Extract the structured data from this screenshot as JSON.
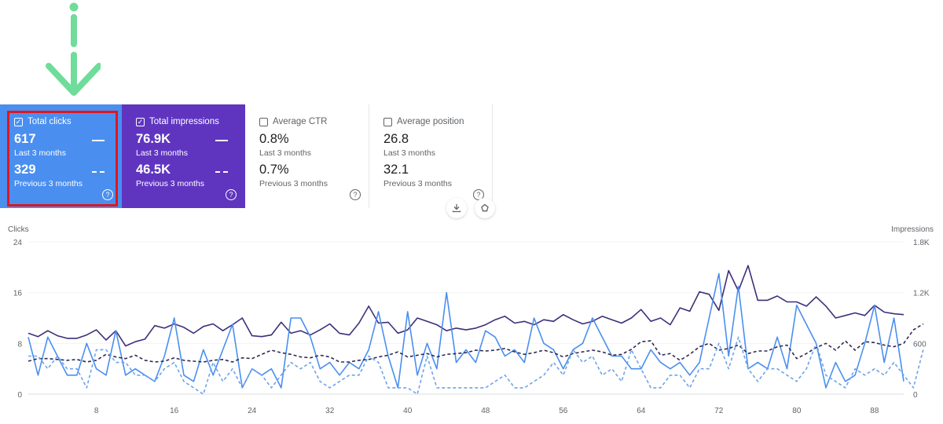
{
  "metrics": {
    "clicks": {
      "label": "Total clicks",
      "current": "617",
      "current_period": "Last 3 months",
      "previous": "329",
      "previous_period": "Previous 3 months",
      "checked": true,
      "color": "#4a8ff0"
    },
    "impressions": {
      "label": "Total impressions",
      "current": "76.9K",
      "current_period": "Last 3 months",
      "previous": "46.5K",
      "previous_period": "Previous 3 months",
      "checked": true,
      "color": "#5f35c0"
    },
    "ctr": {
      "label": "Average CTR",
      "current": "0.8%",
      "current_period": "Last 3 months",
      "previous": "0.7%",
      "previous_period": "Previous 3 months",
      "checked": false
    },
    "position": {
      "label": "Average position",
      "current": "26.8",
      "current_period": "Last 3 months",
      "previous": "32.1",
      "previous_period": "Previous 3 months",
      "checked": false
    }
  },
  "icons": {
    "annotation": "down-arrow-icon",
    "help": "help-icon",
    "download": "download-icon",
    "share": "share-icon",
    "checkbox": "checkbox-icon"
  },
  "colors": {
    "highlight": "#e0161c",
    "arrow": "#6fdc9a",
    "clicks_line": "#4a8ff0",
    "impressions_line": "#3d2f7a"
  },
  "chart_data": {
    "type": "line",
    "y_left": {
      "label": "Clicks",
      "ticks": [
        "24",
        "16",
        "8",
        "0"
      ],
      "ylim": [
        0,
        24
      ]
    },
    "y_right": {
      "label": "Impressions",
      "ticks": [
        "1.8K",
        "1.2K",
        "600",
        "0"
      ],
      "ylim": [
        0,
        1800
      ]
    },
    "x_ticks": [
      "8",
      "16",
      "24",
      "32",
      "40",
      "48",
      "56",
      "64",
      "72",
      "80",
      "88"
    ],
    "x_range": [
      1,
      91
    ],
    "grid": true,
    "series": [
      {
        "axis": "right",
        "style": "solid",
        "color": "#3d2f7a",
        "values": [
          720,
          680,
          750,
          690,
          660,
          660,
          700,
          760,
          640,
          750,
          570,
          620,
          650,
          810,
          780,
          830,
          790,
          720,
          800,
          830,
          750,
          820,
          900,
          690,
          680,
          700,
          850,
          720,
          750,
          700,
          760,
          830,
          720,
          700,
          840,
          1040,
          840,
          850,
          720,
          760,
          900,
          860,
          820,
          750,
          780,
          760,
          780,
          820,
          880,
          920,
          840,
          860,
          820,
          880,
          860,
          940,
          880,
          830,
          860,
          920,
          880,
          840,
          900,
          1000,
          860,
          900,
          820,
          1020,
          980,
          1210,
          1180,
          990,
          1460,
          1220,
          1520,
          1110,
          1110,
          1160,
          1090,
          1090,
          1040,
          1150,
          1040,
          900,
          930,
          960,
          930,
          1050,
          970,
          950,
          940
        ]
      },
      {
        "axis": "left",
        "style": "solid",
        "color": "#4a8ff0",
        "values": [
          9,
          3,
          9,
          6,
          3,
          3,
          8,
          4,
          3,
          10,
          3,
          4,
          3,
          2,
          6,
          12,
          3,
          2,
          7,
          3,
          7,
          11,
          1,
          4,
          3,
          4,
          1,
          12,
          12,
          9,
          4,
          5,
          3,
          5,
          4,
          7,
          13,
          6,
          1,
          13,
          3,
          8,
          4,
          16,
          5,
          7,
          5,
          10,
          9,
          6,
          7,
          5,
          12,
          8,
          7,
          4,
          7,
          8,
          12,
          9,
          6,
          6,
          4,
          4,
          7,
          5,
          4,
          5,
          3,
          5,
          12,
          19,
          6,
          17,
          4,
          5,
          4,
          9,
          4,
          14,
          11,
          8,
          1,
          5,
          2,
          3,
          8,
          14,
          5,
          12,
          2
        ]
      },
      {
        "axis": "right",
        "style": "dashed",
        "color": "#2d2a55",
        "values": [
          390,
          420,
          420,
          410,
          400,
          410,
          380,
          400,
          470,
          440,
          420,
          460,
          400,
          380,
          390,
          430,
          400,
          390,
          380,
          400,
          410,
          380,
          430,
          420,
          470,
          520,
          490,
          470,
          440,
          430,
          460,
          440,
          380,
          380,
          400,
          410,
          440,
          460,
          500,
          440,
          460,
          480,
          440,
          470,
          480,
          490,
          520,
          510,
          520,
          540,
          500,
          470,
          490,
          520,
          490,
          440,
          480,
          500,
          520,
          500,
          460,
          470,
          530,
          620,
          630,
          460,
          480,
          400,
          470,
          560,
          600,
          520,
          540,
          580,
          480,
          510,
          510,
          560,
          580,
          420,
          480,
          550,
          600,
          520,
          630,
          520,
          620,
          610,
          580,
          560,
          600,
          760,
          830
        ]
      },
      {
        "axis": "left",
        "style": "dashed",
        "color": "#6fa3ea",
        "values": [
          6,
          6,
          4,
          6,
          4,
          4,
          1,
          7,
          7,
          5,
          5,
          3,
          3,
          2,
          4,
          5,
          2,
          1,
          0,
          5,
          2,
          4,
          1,
          4,
          3,
          1,
          3,
          5,
          4,
          5,
          2,
          1,
          2,
          3,
          3,
          6,
          5,
          1,
          1,
          1,
          0,
          6,
          1,
          1,
          1,
          1,
          1,
          1,
          2,
          3,
          1,
          1,
          2,
          3,
          5,
          3,
          7,
          5,
          6,
          3,
          4,
          2,
          7,
          4,
          1,
          1,
          3,
          3,
          1,
          4,
          4,
          8,
          4,
          9,
          4,
          2,
          4,
          4,
          3,
          2,
          4,
          8,
          3,
          2,
          1,
          4,
          3,
          4,
          3,
          5,
          3,
          1,
          7
        ]
      }
    ]
  }
}
